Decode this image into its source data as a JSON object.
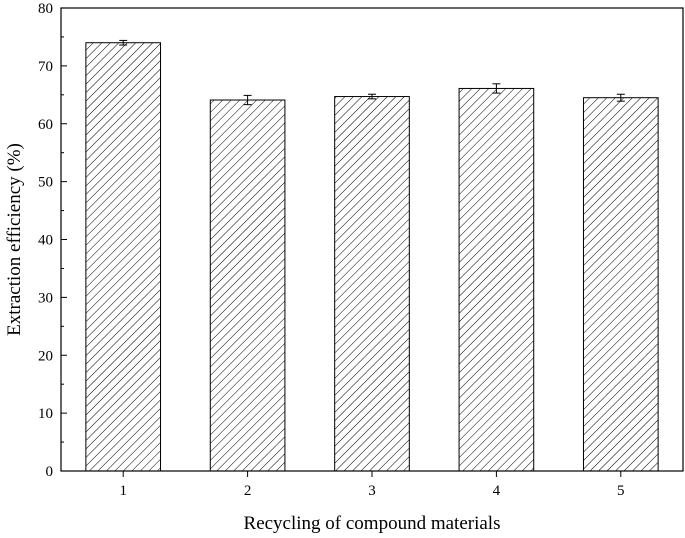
{
  "chart_data": {
    "type": "bar",
    "categories": [
      "1",
      "2",
      "3",
      "4",
      "5"
    ],
    "values": [
      74.0,
      64.1,
      64.7,
      66.1,
      64.5
    ],
    "errors": [
      0.4,
      0.8,
      0.4,
      0.8,
      0.6
    ],
    "xlabel": "Recycling of compound materials",
    "ylabel": "Extraction efficiency (%)",
    "ylim": [
      0,
      80
    ],
    "yticks": [
      0,
      10,
      20,
      30,
      40,
      50,
      60,
      70,
      80
    ],
    "bar_fill": "hatched",
    "grid": false,
    "legend": "none",
    "colors": {
      "bar_edge": "#000000",
      "hatch": "#000000",
      "axis": "#000000"
    }
  }
}
